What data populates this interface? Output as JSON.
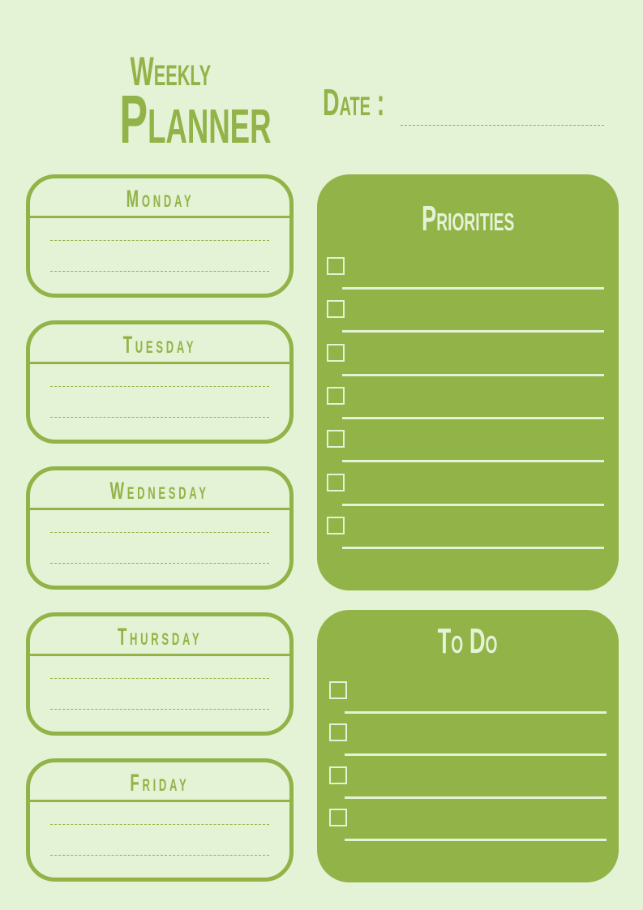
{
  "header": {
    "title_line1": "Weekly",
    "title_line2": "Planner",
    "date_label": "Date :"
  },
  "days": [
    "Monday",
    "Tuesday",
    "Wednesday",
    "Thursday",
    "Friday"
  ],
  "priorities": {
    "title": "Priorities",
    "item_count": 7
  },
  "todo": {
    "title": "To Do",
    "item_count": 4
  },
  "colors": {
    "background": "#e4f2d5",
    "accent": "#92b347"
  }
}
